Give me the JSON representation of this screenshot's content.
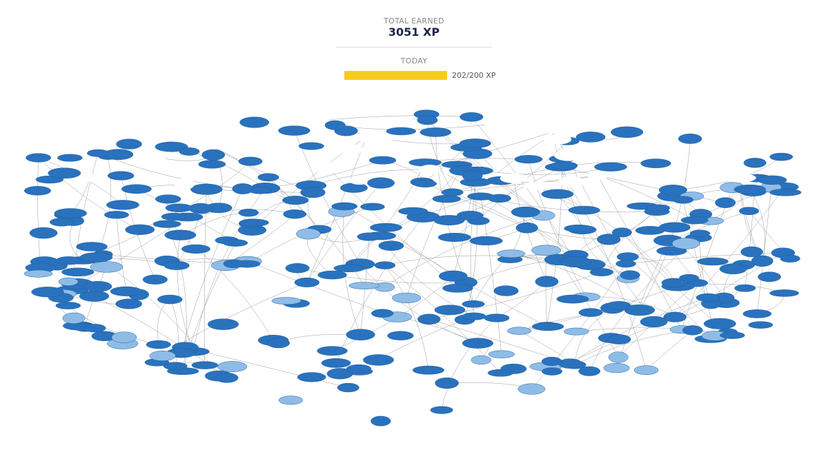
{
  "total": {
    "heading": "TOTAL EARNED",
    "value": 3051,
    "label": "3051 XP"
  },
  "today": {
    "heading": "TODAY",
    "earned": 202,
    "goal": 200,
    "label": "202/200 XP"
  }
}
